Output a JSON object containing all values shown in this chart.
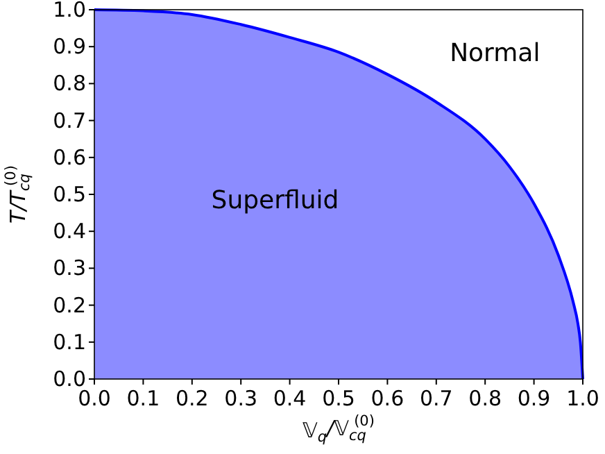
{
  "chart_data": {
    "type": "area",
    "xlabel": "𝕍$_{q}$/𝕍$_{cq}$$^{(0)}$",
    "ylabel": "T/T$_{cq}$$^{(0)}$",
    "x": [
      0,
      0.1,
      0.2,
      0.3,
      0.4,
      0.5,
      0.6,
      0.7,
      0.8,
      0.85,
      0.9,
      0.95,
      0.98,
      0.99,
      0.995,
      1.0
    ],
    "series": [
      {
        "color": "#0000ff",
        "values": [
          1.0,
          0.997,
          0.987,
          0.96,
          0.925,
          0.885,
          0.825,
          0.75,
          0.65,
          0.575,
          0.475,
          0.335,
          0.21,
          0.15,
          0.1,
          0
        ]
      }
    ],
    "xlim": [
      0,
      1
    ],
    "ylim": [
      0,
      1
    ],
    "xticks": [
      {
        "value": 0,
        "label": "0.0"
      },
      0.1,
      0.2,
      0.3,
      0.4,
      0.5,
      0.6,
      0.7,
      0.8,
      0.9,
      {
        "value": 1,
        "label": "1.0"
      }
    ],
    "yticks": [
      {
        "value": 0,
        "label": "0.0"
      },
      0.1,
      0.2,
      0.3,
      0.4,
      0.5,
      0.6,
      0.7,
      0.8,
      0.9,
      {
        "value": 1,
        "label": "1.0"
      }
    ],
    "annotations": [
      "Normal",
      "Superfluid"
    ],
    "grid": false
  }
}
